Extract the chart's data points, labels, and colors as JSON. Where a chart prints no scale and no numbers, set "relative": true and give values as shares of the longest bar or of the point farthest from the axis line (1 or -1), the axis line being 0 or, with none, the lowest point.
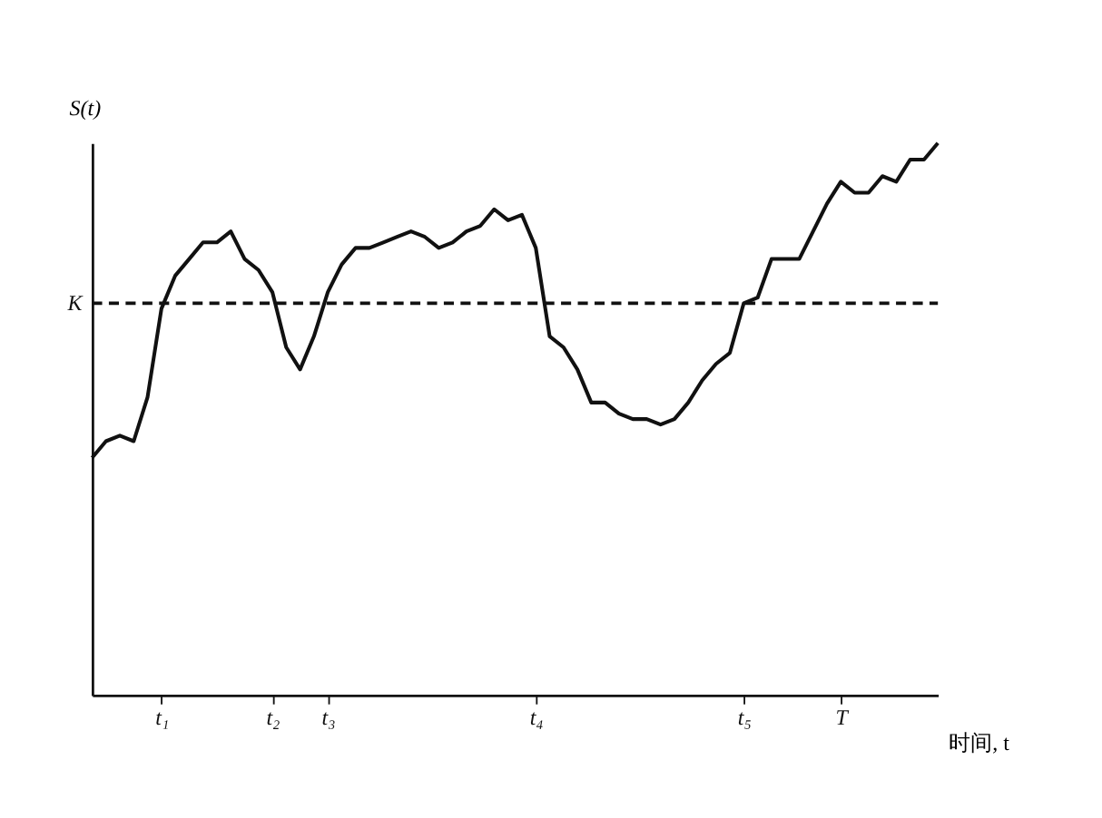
{
  "chart_data": {
    "type": "line",
    "relative": true,
    "xlabel": "时间, t",
    "ylabel": "S(t)",
    "categories": [
      null,
      null,
      null,
      null,
      null,
      "t₁",
      null,
      null,
      null,
      null,
      null,
      null,
      null,
      "t₂",
      null,
      null,
      null,
      "t₃",
      null,
      null,
      null,
      null,
      null,
      null,
      null,
      null,
      null,
      null,
      null,
      null,
      null,
      null,
      "t₄",
      null,
      null,
      null,
      null,
      null,
      null,
      null,
      null,
      null,
      null,
      null,
      null,
      null,
      null,
      "t₅",
      null,
      null,
      null,
      null,
      null,
      null,
      "T",
      null,
      null,
      null,
      null,
      null,
      null,
      null
    ],
    "series": [
      {
        "color": "#111111",
        "values": [
          0.43,
          0.46,
          0.47,
          0.46,
          0.54,
          0.7,
          0.76,
          0.79,
          0.82,
          0.82,
          0.84,
          0.79,
          0.77,
          0.73,
          0.63,
          0.59,
          0.65,
          0.73,
          0.78,
          0.81,
          0.81,
          0.82,
          0.83,
          0.84,
          0.83,
          0.81,
          0.82,
          0.84,
          0.85,
          0.88,
          0.86,
          0.87,
          0.81,
          0.65,
          0.63,
          0.59,
          0.53,
          0.53,
          0.51,
          0.5,
          0.5,
          0.49,
          0.5,
          0.53,
          0.57,
          0.6,
          0.62,
          0.71,
          0.72,
          0.79,
          0.79,
          0.79,
          0.84,
          0.89,
          0.93,
          0.91,
          0.91,
          0.94,
          0.93,
          0.97,
          0.97,
          1.0
        ]
      }
    ],
    "ref_lines": [
      {
        "axis": "y",
        "value": 0.71,
        "label": "K",
        "line_style": "dashed",
        "color": "#111111"
      }
    ],
    "line_style": "solid",
    "marker": "none",
    "grid": false,
    "legend": false,
    "tick_labels": "x"
  }
}
